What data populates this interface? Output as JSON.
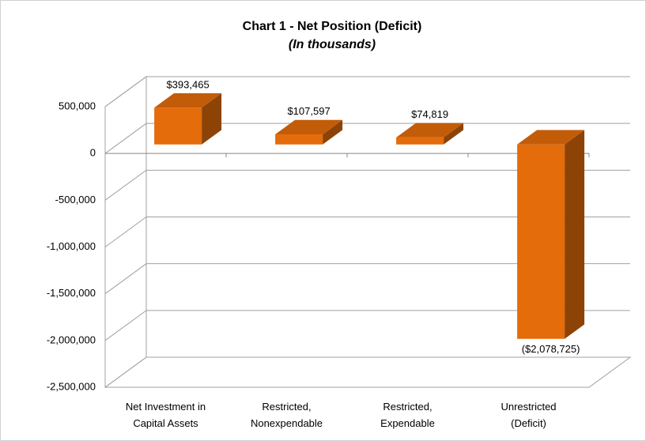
{
  "chart_data": {
    "type": "bar3d",
    "title": "Chart 1 - Net Position (Deficit)",
    "subtitle": "(In thousands)",
    "categories": [
      "Net Investment in Capital Assets",
      "Restricted, Nonexpendable",
      "Restricted, Expendable",
      "Unrestricted (Deficit)"
    ],
    "values": [
      393465,
      107597,
      74819,
      -2078725
    ],
    "value_labels": [
      "$393,465",
      "$107,597",
      "$74,819",
      "($2,078,725)"
    ],
    "color": "#e46c0a",
    "ylim": [
      -2500000,
      500000
    ],
    "yticks": [
      {
        "value": -2500000,
        "label": "-2,500,000"
      },
      {
        "value": -2000000,
        "label": "-2,000,000"
      },
      {
        "value": -1500000,
        "label": "-1,500,000"
      },
      {
        "value": -1000000,
        "label": "-1,000,000"
      },
      {
        "value": -500000,
        "label": "-500,000"
      },
      0,
      {
        "value": 500000,
        "label": "500,000"
      }
    ],
    "grid": true
  }
}
